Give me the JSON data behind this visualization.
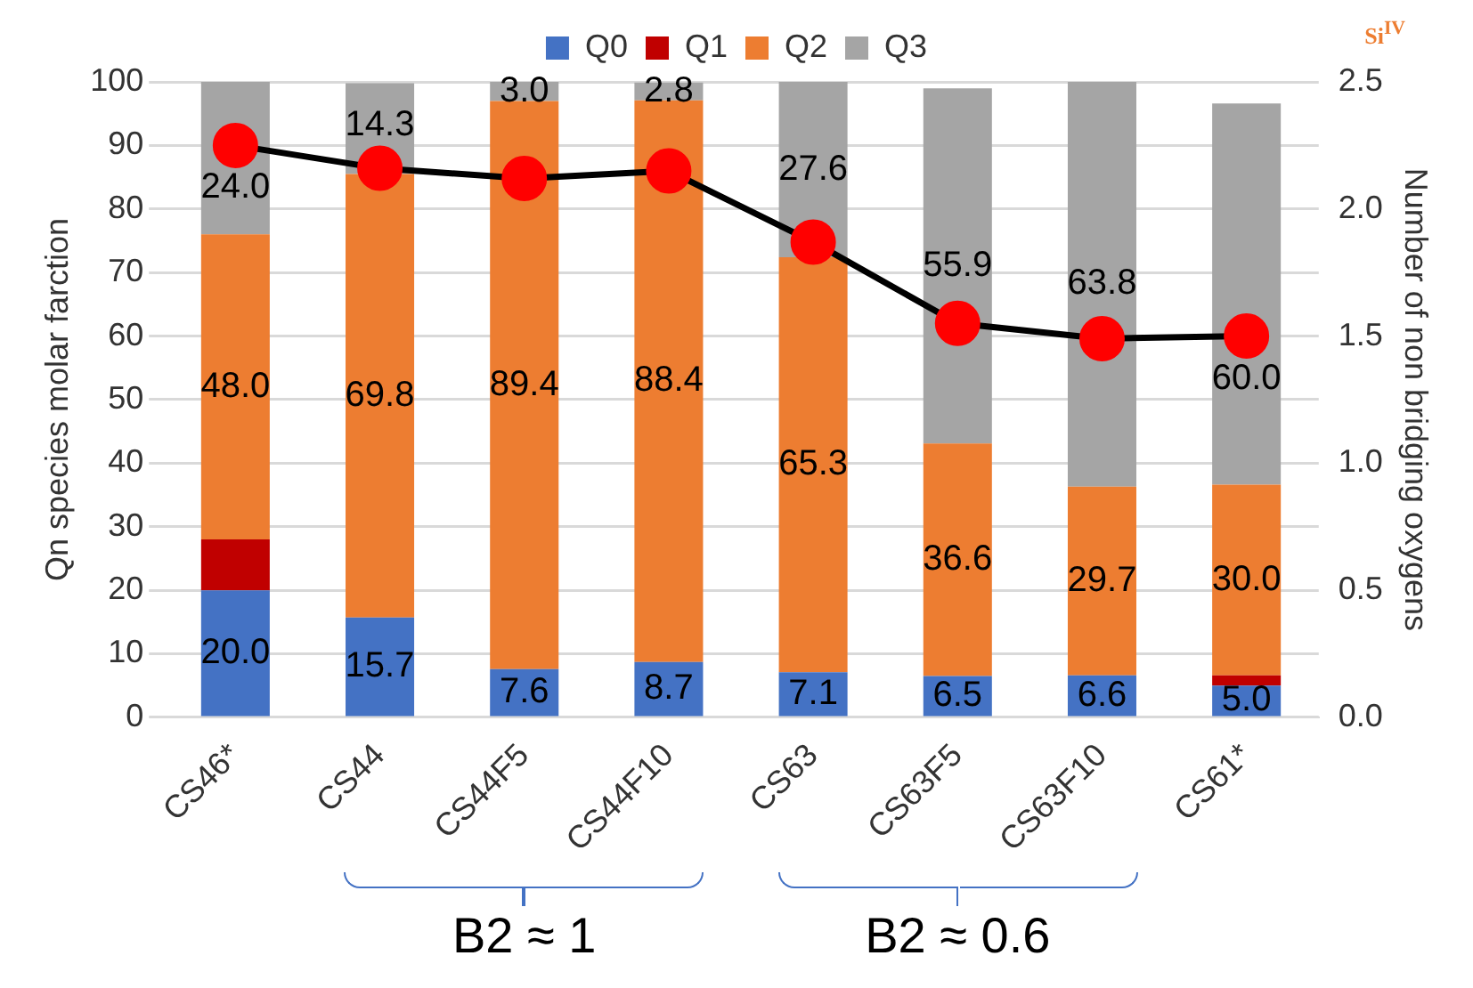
{
  "chart_data": {
    "type": "bar",
    "stacked": true,
    "categories": [
      "CS46*",
      "CS44",
      "CS44F5",
      "CS44F10",
      "CS63",
      "CS63F5",
      "CS63F10",
      "CS61*"
    ],
    "ylabel": "Qn species molar farction",
    "y2label": "Number of non bridging oxygens",
    "ylim": [
      0,
      100
    ],
    "yticks": [
      0,
      10,
      20,
      30,
      40,
      50,
      60,
      70,
      80,
      90,
      100
    ],
    "y2lim": [
      0,
      2.5
    ],
    "y2ticks": [
      {
        "value": 0,
        "label": "0.0"
      },
      {
        "value": 0.5,
        "label": "0.5"
      },
      {
        "value": 1,
        "label": "1.0"
      },
      {
        "value": 1.5,
        "label": "1.5"
      },
      {
        "value": 2,
        "label": "2.0"
      },
      {
        "value": 2.5,
        "label": "2.5"
      }
    ],
    "grid": "y",
    "legend": "top",
    "series": [
      {
        "name": "Q0",
        "color": "#4472c4",
        "values": [
          20.0,
          15.7,
          7.6,
          8.7,
          7.1,
          6.5,
          6.6,
          5.0
        ],
        "value_labels": [
          "20.0",
          "15.7",
          "7.6",
          "8.7",
          "7.1",
          "6.5",
          "6.6",
          "5.0"
        ]
      },
      {
        "name": "Q1",
        "color": "#c00000",
        "values": [
          8.0,
          0,
          0,
          0,
          0,
          0,
          0,
          1.6
        ]
      },
      {
        "name": "Q2",
        "color": "#ed7d31",
        "values": [
          48.0,
          69.8,
          89.4,
          88.4,
          65.3,
          36.6,
          29.7,
          30.0
        ],
        "value_labels": [
          "48.0",
          "69.8",
          "89.4",
          "88.4",
          "65.3",
          "36.6",
          "29.7",
          "30.0"
        ]
      },
      {
        "name": "Q3",
        "color": "#a5a5a5",
        "values": [
          24.0,
          14.3,
          3.0,
          2.8,
          27.6,
          55.9,
          63.8,
          60.0
        ],
        "value_labels": [
          "24.0",
          "14.3",
          "3.0",
          "2.8",
          "27.6",
          "55.9",
          "63.8",
          "60.0"
        ]
      },
      {
        "type": "line",
        "axis": "y2",
        "color": "#000000",
        "colors": [
          "#ff0000",
          "#ff0000",
          "#ff0000",
          "#ff0000",
          "#ff0000",
          "#ff0000",
          "#ff0000",
          "#ff0000"
        ],
        "marker": "circle",
        "values": [
          2.25,
          2.16,
          2.12,
          2.15,
          1.87,
          1.55,
          1.49,
          1.5
        ]
      }
    ],
    "annotations": [
      "B2 ≈ 1",
      "B2 ≈ 0.6",
      "Si$^{IV}$"
    ]
  }
}
